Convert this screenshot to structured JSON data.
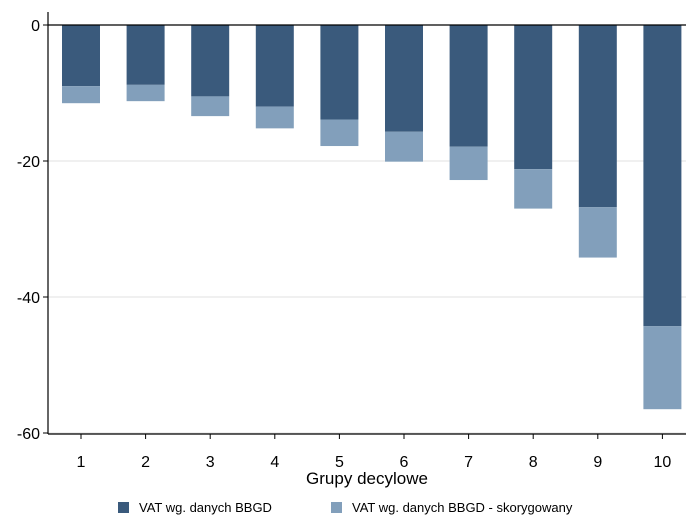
{
  "chart_data": {
    "type": "bar",
    "stacked": true,
    "categories": [
      "1",
      "2",
      "3",
      "4",
      "5",
      "6",
      "7",
      "8",
      "9",
      "10"
    ],
    "series": [
      {
        "name": "VAT wg. danych BBGD",
        "color": "#3a5a7c",
        "values": [
          -9.0,
          -8.8,
          -10.5,
          -12.0,
          -13.9,
          -15.7,
          -17.9,
          -21.2,
          -26.8,
          -44.3
        ]
      },
      {
        "name": "VAT wg. danych BBGD - skorygowany",
        "color": "#829fbb",
        "values": [
          -2.5,
          -2.4,
          -2.9,
          -3.2,
          -3.9,
          -4.4,
          -4.9,
          -5.8,
          -7.4,
          -12.2
        ]
      }
    ],
    "xlabel": "Grupy decylowe",
    "ylabel": "",
    "ylim": [
      -60,
      0
    ],
    "yticks": [
      "0",
      "-20",
      "-40",
      "-60"
    ],
    "grid": true,
    "legend_position": "bottom"
  }
}
